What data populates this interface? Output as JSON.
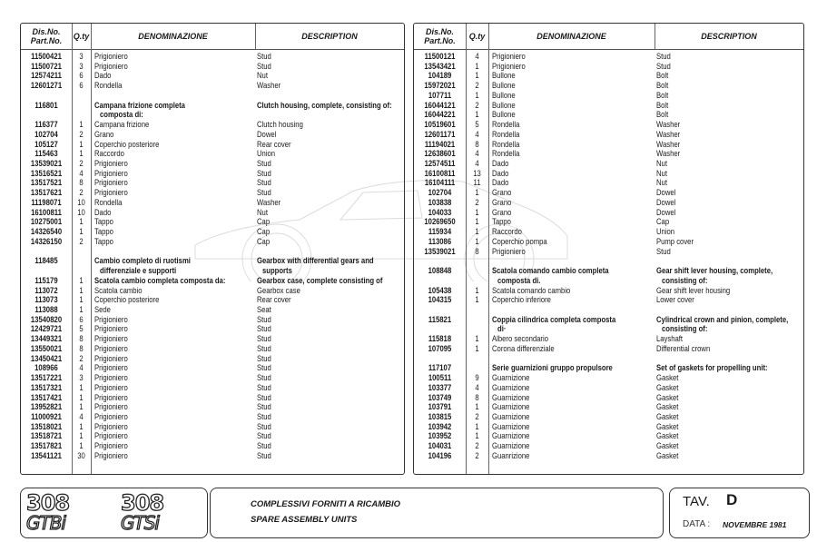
{
  "headers": {
    "part_no_1": "Dis.No.",
    "part_no_2": "Part.No.",
    "qty": "Q.ty",
    "denominazione": "DENOMINAZIONE",
    "description": "DESCRIPTION"
  },
  "left_rows": [
    {
      "part": "11500421",
      "qty": "3",
      "it": "Prigioniero",
      "en": "Stud"
    },
    {
      "part": "11500721",
      "qty": "3",
      "it": "Prigioniero",
      "en": "Stud"
    },
    {
      "part": "12574211",
      "qty": "6",
      "it": "Dado",
      "en": "Nut"
    },
    {
      "part": "12601271",
      "qty": "6",
      "it": "Rondella",
      "en": "Washer"
    },
    {
      "blank": true
    },
    {
      "part": "116801",
      "qty": "",
      "it": "Campana frizione completa",
      "en": "Clutch housing, complete, consisting of:",
      "bold": true
    },
    {
      "part": "",
      "qty": "",
      "it": "composta di:",
      "en": "",
      "bold": true,
      "indent": true
    },
    {
      "part": "116377",
      "qty": "1",
      "it": "Campana frizione",
      "en": "Clutch housing"
    },
    {
      "part": "102704",
      "qty": "2",
      "it": "Grano",
      "en": "Dowel"
    },
    {
      "part": "105127",
      "qty": "1",
      "it": "Coperchio posteriore",
      "en": "Rear cover"
    },
    {
      "part": "115463",
      "qty": "1",
      "it": "Raccordo",
      "en": "Union"
    },
    {
      "part": "13539021",
      "qty": "2",
      "it": "Prigioniero",
      "en": "Stud"
    },
    {
      "part": "13516521",
      "qty": "4",
      "it": "Prigioniero",
      "en": "Stud"
    },
    {
      "part": "13517521",
      "qty": "8",
      "it": "Prigioniero",
      "en": "Stud"
    },
    {
      "part": "13517621",
      "qty": "2",
      "it": "Prigioniero",
      "en": "Stud"
    },
    {
      "part": "11198071",
      "qty": "10",
      "it": "Rondella",
      "en": "Washer"
    },
    {
      "part": "16100811",
      "qty": "10",
      "it": "Dado",
      "en": "Nut"
    },
    {
      "part": "10275001",
      "qty": "1",
      "it": "Tappo",
      "en": "Cap"
    },
    {
      "part": "14326540",
      "qty": "1",
      "it": "Tappo",
      "en": "Cap"
    },
    {
      "part": "14326150",
      "qty": "2",
      "it": "Tappo",
      "en": "Cap"
    },
    {
      "blank": true
    },
    {
      "part": "118485",
      "qty": "",
      "it": "Cambio completo di ruotismi",
      "en": "Gearbox with differential gears  and",
      "bold": true
    },
    {
      "part": "",
      "qty": "",
      "it": "differenziale e supporti",
      "en": "supports",
      "bold": true,
      "indent": true
    },
    {
      "part": "115179",
      "qty": "1",
      "it": "Scatola cambio completa composta da:",
      "en": "Gearbox case, complete consisting of",
      "bold": true
    },
    {
      "part": "113072",
      "qty": "1",
      "it": "Scatola cambio",
      "en": "Gearbox case"
    },
    {
      "part": "113073",
      "qty": "1",
      "it": "Coperchio posteriore",
      "en": "Rear cover"
    },
    {
      "part": "113088",
      "qty": "1",
      "it": "Sede",
      "en": "Seat"
    },
    {
      "part": "13540820",
      "qty": "6",
      "it": "Prigioniero",
      "en": "Stud"
    },
    {
      "part": "12429721",
      "qty": "5",
      "it": "Prigioniero",
      "en": "Stud"
    },
    {
      "part": "13449321",
      "qty": "8",
      "it": "Prigioniero",
      "en": "Stud"
    },
    {
      "part": "13550021",
      "qty": "8",
      "it": "Prigioniero",
      "en": "Stud"
    },
    {
      "part": "13450421",
      "qty": "2",
      "it": "Prigioniero",
      "en": "Stud"
    },
    {
      "part": "108966",
      "qty": "4",
      "it": "Prigioniero",
      "en": "Stud"
    },
    {
      "part": "13517221",
      "qty": "3",
      "it": "Prigioniero",
      "en": "Stud"
    },
    {
      "part": "13517321",
      "qty": "1",
      "it": "Prigioniero",
      "en": "Stud"
    },
    {
      "part": "13517421",
      "qty": "1",
      "it": "Prigioniero",
      "en": "Stud"
    },
    {
      "part": "13952821",
      "qty": "1",
      "it": "Prigioniero",
      "en": "Stud"
    },
    {
      "part": "11000921",
      "qty": "4",
      "it": "Prigioniero",
      "en": "Stud"
    },
    {
      "part": "13518021",
      "qty": "1",
      "it": "Prigioniero",
      "en": "Stud"
    },
    {
      "part": "13518721",
      "qty": "1",
      "it": "Prigioniero",
      "en": "Stud"
    },
    {
      "part": "13517821",
      "qty": "1",
      "it": "Prigioniero",
      "en": "Stud"
    },
    {
      "part": "13541121",
      "qty": "30",
      "it": "Prigioniero",
      "en": "Stud"
    }
  ],
  "right_rows": [
    {
      "part": "11500121",
      "qty": "4",
      "it": "Prigioniero",
      "en": "Stud"
    },
    {
      "part": "13543421",
      "qty": "1",
      "it": "Prigioniero",
      "en": "Stud"
    },
    {
      "part": "104189",
      "qty": "1",
      "it": "Bullone",
      "en": "Bolt"
    },
    {
      "part": "15972021",
      "qty": "2",
      "it": "Bullone",
      "en": "Bolt"
    },
    {
      "part": "107711",
      "qty": "1",
      "it": "Bullone",
      "en": "Bolt"
    },
    {
      "part": "16044121",
      "qty": "2",
      "it": "Bullone",
      "en": "Bolt"
    },
    {
      "part": "16044221",
      "qty": "1",
      "it": "Bullone",
      "en": "Bolt"
    },
    {
      "part": "10519601",
      "qty": "5",
      "it": "Rondella",
      "en": "Washer"
    },
    {
      "part": "12601171",
      "qty": "4",
      "it": "Rondella",
      "en": "Washer"
    },
    {
      "part": "11194021",
      "qty": "8",
      "it": "Rondella",
      "en": "Washer"
    },
    {
      "part": "12638601",
      "qty": "4",
      "it": "Rondella",
      "en": "Washer"
    },
    {
      "part": "12574511",
      "qty": "4",
      "it": "Dado",
      "en": "Nut"
    },
    {
      "part": "16100811",
      "qty": "13",
      "it": "Dado",
      "en": "Nut"
    },
    {
      "part": "16104111",
      "qty": "11",
      "it": "Dado",
      "en": "Nut"
    },
    {
      "part": "102704",
      "qty": "1",
      "it": "Grano",
      "en": "Dowel"
    },
    {
      "part": "103838",
      "qty": "2",
      "it": "Grano",
      "en": "Dowel"
    },
    {
      "part": "104033",
      "qty": "1",
      "it": "Grano",
      "en": "Dowel"
    },
    {
      "part": "10269650",
      "qty": "1",
      "it": "Tappo",
      "en": "Cap"
    },
    {
      "part": "115934",
      "qty": "1",
      "it": "Raccordo",
      "en": "Union"
    },
    {
      "part": "113086",
      "qty": "1",
      "it": "Coperchio pompa",
      "en": "Pump cover"
    },
    {
      "part": "13539021",
      "qty": "8",
      "it": "Prigioniero",
      "en": "Stud"
    },
    {
      "blank": true
    },
    {
      "part": "108848",
      "qty": "",
      "it": "Scatola comando cambio completa",
      "en": "Gear shift lever housing, complete,",
      "bold": true
    },
    {
      "part": "",
      "qty": "",
      "it": "composta di.",
      "en": "consisting of:",
      "bold": true,
      "indent": true
    },
    {
      "part": "105438",
      "qty": "1",
      "it": "Scatola comando cambio",
      "en": "Gear shift lever housing"
    },
    {
      "part": "104315",
      "qty": "1",
      "it": "Coperchio inferiore",
      "en": "Lower cover"
    },
    {
      "blank": true
    },
    {
      "part": "115821",
      "qty": "",
      "it": "Coppia cilindrica completa composta",
      "en": "Cylindrical crown and pinion, complete,",
      "bold": true
    },
    {
      "part": "",
      "qty": "",
      "it": "di·",
      "en": "consisting of:",
      "bold": true,
      "indent": true
    },
    {
      "part": "115818",
      "qty": "1",
      "it": "Albero secondario",
      "en": "Layshaft"
    },
    {
      "part": "107095",
      "qty": "1",
      "it": "Corona differenziale",
      "en": "Differential crown"
    },
    {
      "blank": true
    },
    {
      "part": "117107",
      "qty": "",
      "it": "Serie guarnizioni gruppo propulsore",
      "en": "Set of gaskets for propelling unit:",
      "bold": true
    },
    {
      "part": "100511",
      "qty": "9",
      "it": "Guarnizione",
      "en": "Gasket"
    },
    {
      "part": "103377",
      "qty": "4",
      "it": "Guarnizione",
      "en": "Gasket"
    },
    {
      "part": "103749",
      "qty": "8",
      "it": "Guarnizione",
      "en": "Gasket"
    },
    {
      "part": "103791",
      "qty": "1",
      "it": "Guarnizione",
      "en": "Gasket"
    },
    {
      "part": "103815",
      "qty": "2",
      "it": "Guarnizione",
      "en": "Gasket"
    },
    {
      "part": "103942",
      "qty": "1",
      "it": "Guarnizione",
      "en": "Gasket"
    },
    {
      "part": "103952",
      "qty": "1",
      "it": "Guarnizione",
      "en": "Gasket"
    },
    {
      "part": "104031",
      "qty": "2",
      "it": "Guarnizione",
      "en": "Gasket"
    },
    {
      "part": "104196",
      "qty": "2",
      "it": "Guanrizione",
      "en": "Gasket"
    }
  ],
  "footer": {
    "logo_1_num": "308",
    "logo_1_model": "GTBi",
    "logo_2_num": "308",
    "logo_2_model": "GTSi",
    "title_it": "COMPLESSIVI FORNITI A RICAMBIO",
    "title_en": "SPARE ASSEMBLY UNITS",
    "tav_label": "TAV.",
    "tav_value": "D",
    "date_label": "DATA  :",
    "date_value": "NOVEMBRE 1981"
  }
}
